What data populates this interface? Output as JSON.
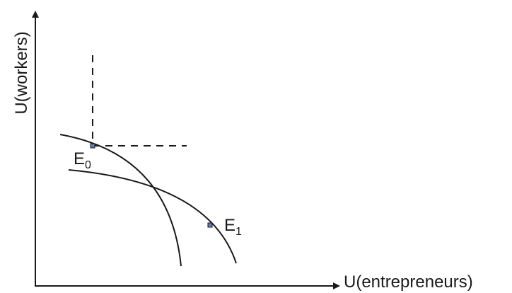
{
  "axes": {
    "x_label": "U(entrepreneurs)",
    "y_label": "U(workers)"
  },
  "points": {
    "e0": {
      "letter": "E",
      "subscript": "0"
    },
    "e1": {
      "letter": "E",
      "subscript": "1"
    }
  },
  "colors": {
    "line": "#1a1a1a",
    "point_fill": "#5b7fb2"
  },
  "curves": [
    "utility-possibility-frontier-steep",
    "utility-possibility-frontier-flat"
  ],
  "guides": [
    "vertical-dashed-guide",
    "horizontal-dashed-guide"
  ]
}
